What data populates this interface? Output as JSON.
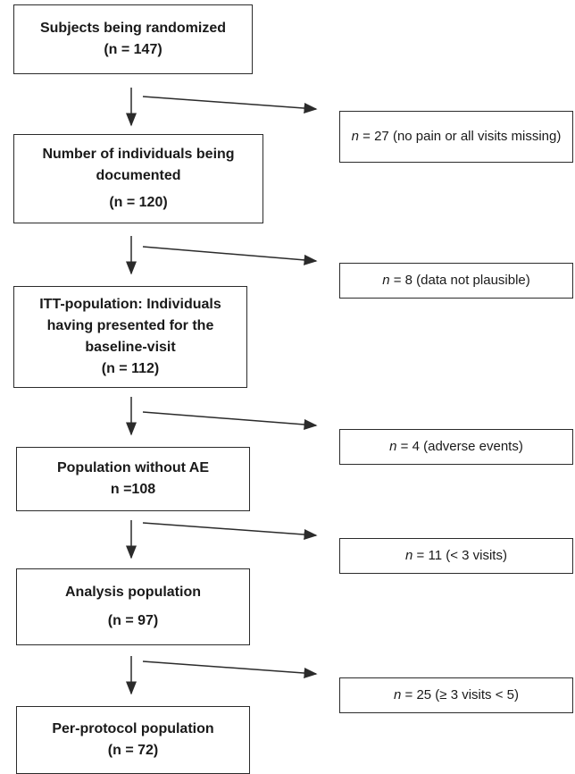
{
  "steps": [
    {
      "title": "Subjects being randomized",
      "count": "(n = 147)"
    },
    {
      "title": "Number of individuals being documented",
      "count": "(n = 120)"
    },
    {
      "title": "ITT-population: Individuals having presented for the baseline-visit",
      "count": "(n = 112)"
    },
    {
      "title": "Population without AE",
      "count": "n =108"
    },
    {
      "title": "Analysis population",
      "count": "(n = 97)"
    },
    {
      "title": "Per-protocol population",
      "count": "(n = 72)"
    }
  ],
  "exclusions": [
    {
      "n_label": "n",
      "text": " = 27 (no pain or all visits missing)"
    },
    {
      "n_label": "n",
      "text": " = 8 (data not plausible)"
    },
    {
      "n_label": "n",
      "text": " = 4 (adverse events)"
    },
    {
      "n_label": "n",
      "text": " = 11 (< 3 visits)"
    },
    {
      "n_label": "n",
      "text": " = 25 (≥ 3 visits < 5)"
    }
  ]
}
